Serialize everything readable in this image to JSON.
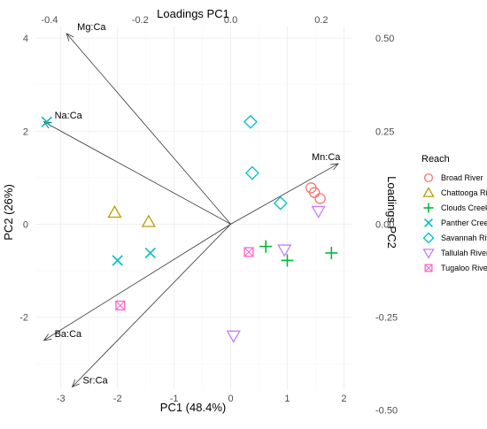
{
  "chart_data": {
    "type": "scatter",
    "subtype": "pca-biplot",
    "title": "",
    "xlabel": "PC1 (48.4%)",
    "ylabel": "PC2 (26%)",
    "x_top_label": "Loadings PC1",
    "y_right_label": "Loadings PC2",
    "xlim": [
      -3.45,
      2.15
    ],
    "ylim": [
      -3.55,
      4.25
    ],
    "x_ticks": [
      -3,
      -2,
      -1,
      0,
      1,
      2
    ],
    "y_ticks": [
      -2,
      0,
      2,
      4
    ],
    "top_ticks": [
      "-0.4",
      "-0.2",
      "0.0",
      "0.2"
    ],
    "right_ticks": [
      "0.50",
      "0.25",
      "0.00",
      "-0.25",
      "-0.50"
    ],
    "loadings_scale": 8.0,
    "grid": true,
    "legend_position": "right",
    "legend_title": "Reach",
    "series": [
      {
        "name": "Broad River",
        "color": "#F8766D",
        "shape": "circle",
        "points": [
          [
            1.42,
            0.78
          ],
          [
            1.48,
            0.68
          ],
          [
            1.58,
            0.55
          ]
        ]
      },
      {
        "name": "Chattooga River",
        "color": "#B79F00",
        "shape": "triangle-up",
        "points": [
          [
            -2.05,
            0.25
          ],
          [
            -1.45,
            0.05
          ]
        ]
      },
      {
        "name": "Clouds Creek",
        "color": "#00BA38",
        "shape": "plus",
        "points": [
          [
            0.62,
            -0.48
          ],
          [
            1.0,
            -0.78
          ],
          [
            1.78,
            -0.62
          ]
        ]
      },
      {
        "name": "Panther Creek",
        "color": "#00BFC4",
        "shape": "x",
        "points": [
          [
            -3.25,
            2.2
          ],
          [
            -2.0,
            -0.78
          ],
          [
            -1.42,
            -0.62
          ]
        ]
      },
      {
        "name": "Savannah River",
        "color": "#00BFC4",
        "shape": "diamond",
        "points": [
          [
            0.35,
            2.2
          ],
          [
            0.38,
            1.1
          ],
          [
            0.88,
            0.45
          ]
        ]
      },
      {
        "name": "Tallulah River",
        "color": "#C77CFF",
        "shape": "triangle-down",
        "points": [
          [
            1.55,
            0.28
          ],
          [
            0.95,
            -0.55
          ],
          [
            0.05,
            -2.4
          ]
        ]
      },
      {
        "name": "Tugaloo River",
        "color": "#FF61CC",
        "shape": "square-x",
        "points": [
          [
            0.32,
            -0.6
          ],
          [
            -1.95,
            -1.75
          ]
        ]
      }
    ],
    "loadings": [
      {
        "label": "Mg:Ca",
        "pc1": -0.3625,
        "pc2": 0.5125
      },
      {
        "label": "Na:Ca",
        "pc1": -0.4125,
        "pc2": 0.275
      },
      {
        "label": "Mn:Ca",
        "pc1": 0.2375,
        "pc2": 0.1625
      },
      {
        "label": "Ba:Ca",
        "pc1": -0.4125,
        "pc2": -0.3125
      },
      {
        "label": "Sr:Ca",
        "pc1": -0.35,
        "pc2": -0.4375
      }
    ]
  }
}
